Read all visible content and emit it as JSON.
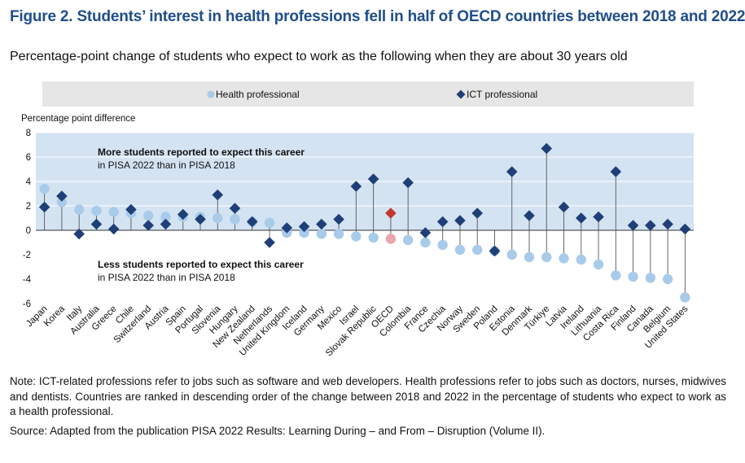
{
  "title": "Figure 2. Students’ interest in health professions fell in half of OECD countries between 2018 and 2022",
  "subtitle": "Percentage-point change of students who expect to work as the following when they are about 30 years old",
  "note": "Note: ICT-related professions refer to jobs such as software and web developers. Health professions refer to jobs such as doctors, nurses, midwives and dentists. Countries are ranked in descending order of the change between 2018 and 2022 in the percentage of students who expect to work as a health professional.",
  "source": "Source: Adapted from the publication PISA 2022 Results: Learning During – and From – Disruption (Volume II).",
  "colors": {
    "health": "#a9cbea",
    "ict": "#1f3f78",
    "oecd_health": "#e7a7ab",
    "oecd_ict": "#c0392b",
    "top_band": "#d4e3f2",
    "legend_band": "#e6e6e6",
    "stem": "#555555"
  },
  "chart_data": {
    "type": "scatter",
    "ylabel": "Percentage point difference",
    "ylim": [
      -6,
      8
    ],
    "yticks": [
      -6,
      -4,
      -2,
      0,
      2,
      4,
      6,
      8
    ],
    "legend": {
      "placement": "top",
      "entries": [
        "Health professional",
        "ICT professional"
      ]
    },
    "annotations": {
      "upper_bold": "More students reported to expect this career",
      "upper_normal": "in PISA 2022 than in PISA 2018",
      "lower_bold": "Less students reported to expect this career",
      "lower_normal": "in PISA 2022 than in PISA 2018"
    },
    "highlight": "OECD",
    "categories": [
      "Japan",
      "Korea",
      "Italy",
      "Australia",
      "Greece",
      "Chile",
      "Switzerland",
      "Austria",
      "Spain",
      "Portugal",
      "Slovenia",
      "Hungary",
      "New Zealand",
      "Netherlands",
      "United Kingdom",
      "Iceland",
      "Germany",
      "Mexico",
      "Israel",
      "Slovak Republic",
      "OECD",
      "Colombia",
      "France",
      "Czechia",
      "Norway",
      "Sweden",
      "Poland",
      "Estonia",
      "Denmark",
      "Türkiye",
      "Latvia",
      "Ireland",
      "Lithuania",
      "Costa Rica",
      "Finland",
      "Canada",
      "Belgium",
      "United States"
    ],
    "series": [
      {
        "name": "Health professional",
        "values": [
          3.4,
          2.3,
          1.7,
          1.6,
          1.5,
          1.4,
          1.2,
          1.1,
          1.1,
          1.1,
          1.0,
          0.9,
          0.7,
          0.6,
          -0.2,
          -0.2,
          -0.3,
          -0.3,
          -0.5,
          -0.6,
          -0.7,
          -0.8,
          -1.0,
          -1.2,
          -1.6,
          -1.6,
          -1.7,
          -2.0,
          -2.2,
          -2.2,
          -2.3,
          -2.4,
          -2.8,
          -3.7,
          -3.8,
          -3.9,
          -4.0,
          -5.5
        ]
      },
      {
        "name": "ICT professional",
        "values": [
          1.9,
          2.8,
          -0.3,
          0.5,
          0.1,
          1.7,
          0.4,
          0.5,
          1.3,
          0.9,
          2.9,
          1.8,
          0.7,
          -1.0,
          0.2,
          0.3,
          0.5,
          0.9,
          3.6,
          4.2,
          1.4,
          3.9,
          -0.2,
          0.7,
          0.8,
          1.4,
          -1.7,
          4.8,
          1.2,
          6.7,
          1.9,
          1.0,
          1.1,
          4.8,
          0.4,
          0.4,
          0.5,
          0.1
        ]
      }
    ]
  }
}
